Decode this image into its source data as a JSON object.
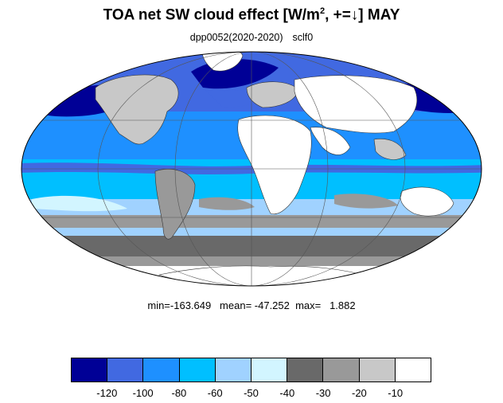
{
  "title": {
    "main": "TOA net SW cloud effect [W/m",
    "sup": "2",
    "suffix": ", +=↓]  MAY"
  },
  "subtitle": {
    "run": "dpp0052(2020-2020)",
    "var": "sclf0"
  },
  "stats": {
    "text": "min=-163.649   mean= -47.252  max=   1.882"
  },
  "colorbar": {
    "colors": [
      "#000096",
      "#4169e1",
      "#1e90ff",
      "#00bfff",
      "#a0d2ff",
      "#d2f5ff",
      "#696969",
      "#999999",
      "#c8c8c8",
      "#ffffff"
    ],
    "labels": [
      "-120",
      "-100",
      "-80",
      "-60",
      "-50",
      "-40",
      "-30",
      "-20",
      "-10"
    ]
  },
  "map": {
    "projection": "mollweide",
    "ocean_colors": {
      "deep": "#000096",
      "strong": "#4169e1",
      "medium": "#1e90ff",
      "light": "#00bfff",
      "pale": "#a0d2ff",
      "faint": "#d2f5ff",
      "dark_gray": "#696969",
      "mid_gray": "#999999",
      "light_gray": "#c8c8c8",
      "white": "#ffffff"
    }
  }
}
